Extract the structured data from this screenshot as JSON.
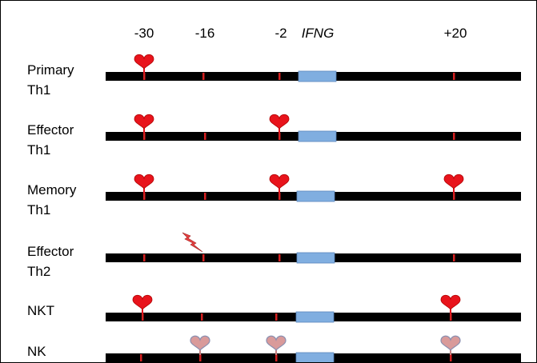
{
  "header": {
    "positions": [
      "-30",
      "-16",
      "-2",
      "+20"
    ],
    "gene": "IFNG"
  },
  "legend_colors": {
    "line": "#000000",
    "tick": "#d62020",
    "gene_box": "#80aee0",
    "heart_strong": "#e8141c",
    "heart_weak": "#d99a9a",
    "bolt": "#e84040"
  },
  "rows": [
    {
      "line1": "Primary",
      "line2": "Th1",
      "marks": [
        "heart",
        "tick",
        "tick",
        "tick"
      ]
    },
    {
      "line1": "Effector",
      "line2": "Th1",
      "marks": [
        "heart",
        "tick",
        "heart",
        "tick"
      ]
    },
    {
      "line1": "Memory",
      "line2": "Th1",
      "marks": [
        "heart",
        "tick",
        "heart",
        "heart"
      ]
    },
    {
      "line1": "Effector",
      "line2": "Th2",
      "marks": [
        "tick",
        "bolt",
        "tick",
        "tick"
      ]
    },
    {
      "line1": "NKT",
      "line2": "",
      "marks": [
        "heart",
        "tick",
        "tick",
        "heart"
      ]
    },
    {
      "line1": "NK",
      "line2": "",
      "marks": [
        "tick",
        "heart-weak",
        "heart-weak",
        "heart-weak"
      ]
    }
  ]
}
